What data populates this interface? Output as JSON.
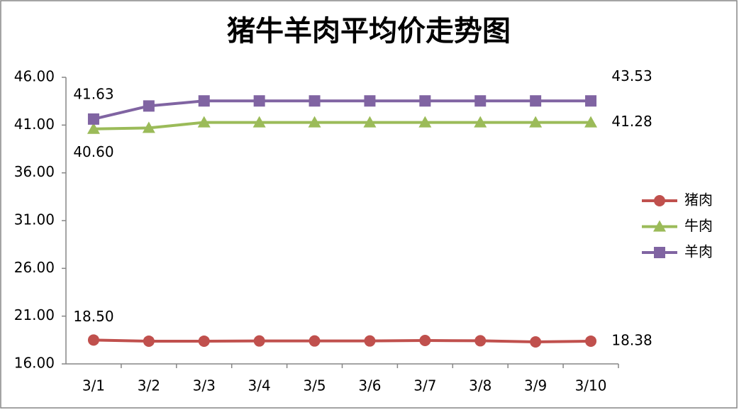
{
  "chart_data": {
    "type": "line",
    "title": "猪牛羊肉平均价走势图",
    "categories": [
      "3/1",
      "3/2",
      "3/3",
      "3/4",
      "3/5",
      "3/6",
      "3/7",
      "3/8",
      "3/9",
      "3/10"
    ],
    "series": [
      {
        "name": "猪肉",
        "color": "#c0504d",
        "marker": "circle",
        "values": [
          18.5,
          18.38,
          18.38,
          18.4,
          18.4,
          18.4,
          18.45,
          18.42,
          18.3,
          18.38
        ],
        "value_labels": [
          "18.50",
          null,
          null,
          null,
          null,
          null,
          null,
          null,
          null,
          "18.38"
        ]
      },
      {
        "name": "牛肉",
        "color": "#9bbb59",
        "marker": "triangle",
        "values": [
          40.6,
          40.7,
          41.28,
          41.28,
          41.28,
          41.28,
          41.28,
          41.28,
          41.28,
          41.28
        ],
        "value_labels": [
          "40.60",
          null,
          null,
          null,
          null,
          null,
          null,
          null,
          null,
          "41.28"
        ]
      },
      {
        "name": "羊肉",
        "color": "#8064a2",
        "marker": "square",
        "values": [
          41.63,
          43.0,
          43.53,
          43.53,
          43.53,
          43.53,
          43.53,
          43.53,
          43.53,
          43.53
        ],
        "value_labels": [
          "41.63",
          null,
          null,
          null,
          null,
          null,
          null,
          null,
          null,
          "43.53"
        ]
      }
    ],
    "ylim": [
      16,
      46
    ],
    "yticks": [
      {
        "value": 16,
        "label": "16.00"
      },
      {
        "value": 21,
        "label": "21.00"
      },
      {
        "value": 26,
        "label": "26.00"
      },
      {
        "value": 31,
        "label": "31.00"
      },
      {
        "value": 36,
        "label": "36.00"
      },
      {
        "value": 41,
        "label": "41.00"
      },
      {
        "value": 46,
        "label": "46.00"
      }
    ],
    "grid": false,
    "legend": "right"
  }
}
